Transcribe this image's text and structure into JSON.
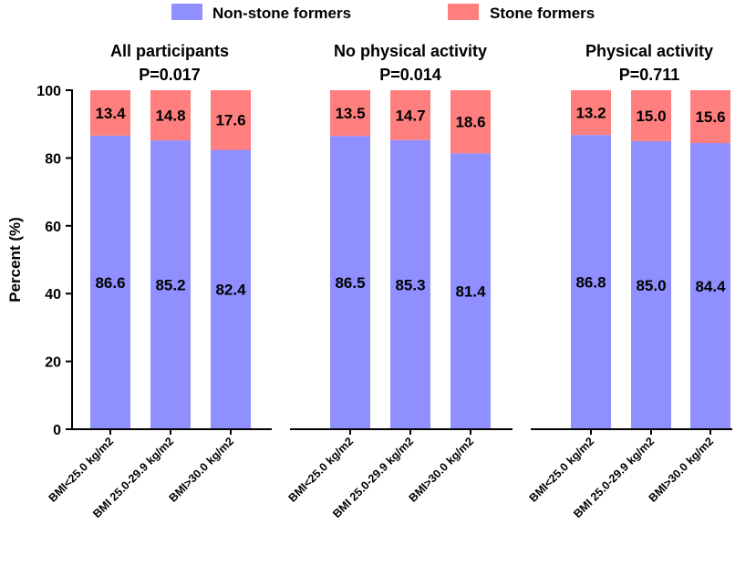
{
  "chart_data": {
    "type": "bar",
    "stacked": true,
    "ylabel": "Percent (%)",
    "ylim": [
      0,
      100
    ],
    "yticks": [
      0,
      20,
      40,
      60,
      80,
      100
    ],
    "legend_position": "top-center",
    "series_colors": {
      "non_stone": "#8f8fff",
      "stone": "#ff7f7f"
    },
    "legend": [
      {
        "name": "Non-stone formers",
        "color": "#8f8fff"
      },
      {
        "name": "Stone formers",
        "color": "#ff7f7f"
      }
    ],
    "groups": [
      {
        "title": "All participants",
        "pvalue": "P=0.017",
        "categories": [
          "BMI<25.0 kg/m2",
          "BMI 25.0-29.9 kg/m2",
          "BMI>30.0 kg/m2"
        ],
        "non_stone": [
          "86.6",
          "85.2",
          "82.4"
        ],
        "stone": [
          "13.4",
          "14.8",
          "17.6"
        ]
      },
      {
        "title": "No physical activity",
        "pvalue": "P=0.014",
        "categories": [
          "BMI<25.0 kg/m2",
          "BMI 25.0-29.9 kg/m2",
          "BMI>30.0 kg/m2"
        ],
        "non_stone": [
          "86.5",
          "85.3",
          "81.4"
        ],
        "stone": [
          "13.5",
          "14.7",
          "18.6"
        ]
      },
      {
        "title": "Physical activity",
        "pvalue": "P=0.711",
        "categories": [
          "BMI<25.0 kg/m2",
          "BMI 25.0-29.9 kg/m2",
          "BMI>30.0 kg/m2"
        ],
        "non_stone": [
          "86.8",
          "85.0",
          "84.4"
        ],
        "stone": [
          "13.2",
          "15.0",
          "15.6"
        ]
      }
    ]
  }
}
